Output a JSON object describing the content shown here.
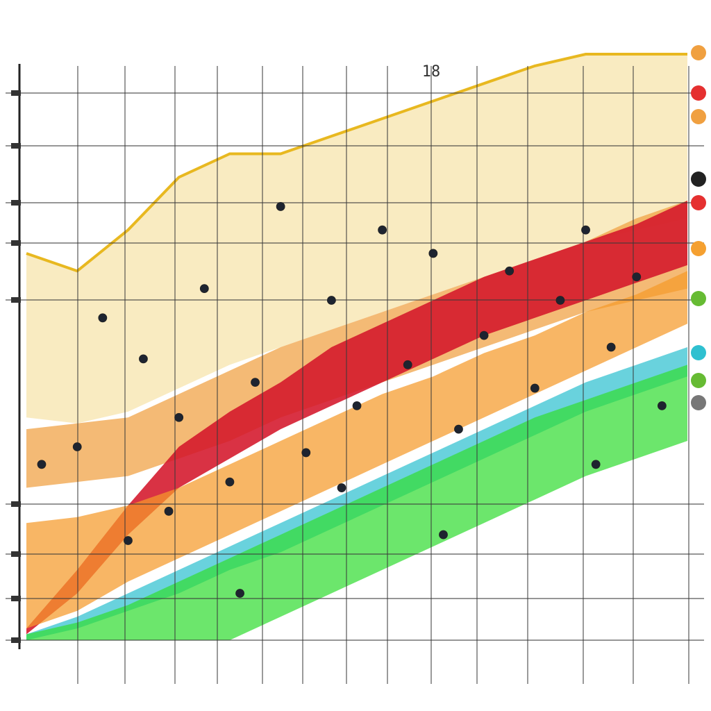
{
  "chart_data": {
    "type": "area",
    "title": "",
    "xlabel": "",
    "ylabel": "",
    "x": [
      0,
      1,
      2,
      3,
      4,
      5,
      6,
      7,
      8,
      9,
      10,
      11,
      12,
      13
    ],
    "xlim": [
      0,
      13
    ],
    "ylim": [
      0,
      100
    ],
    "grid": true,
    "legend": "right",
    "top_tick_labels": [
      "",
      "",
      "",
      "",
      "",
      "",
      "",
      "",
      "18",
      "",
      "",
      "",
      "",
      ""
    ],
    "series": [
      {
        "color": "#e8b820",
        "top": [
          66,
          63,
          70,
          79,
          83,
          83,
          86,
          89,
          92,
          95,
          98,
          100,
          100,
          100
        ],
        "bottom": [
          38,
          37,
          39,
          43,
          47,
          50,
          53,
          56,
          59,
          62,
          65,
          68,
          70,
          72
        ]
      },
      {
        "color": "#f0a040",
        "top": [
          36,
          37,
          38,
          42,
          46,
          50,
          53,
          56,
          59,
          62,
          65,
          68,
          72,
          75
        ],
        "bottom": [
          26,
          27,
          28,
          31,
          34,
          38,
          41,
          44,
          47,
          50,
          53,
          56,
          58,
          60
        ]
      },
      {
        "color": "#d4162a",
        "top": [
          2,
          12,
          23,
          33,
          39,
          44,
          50,
          54,
          58,
          62,
          65,
          68,
          71,
          75
        ],
        "bottom": [
          1,
          8,
          18,
          26,
          31,
          36,
          40,
          44,
          48,
          52,
          55,
          58,
          61,
          64
        ]
      },
      {
        "color": "#f59a2a",
        "top": [
          20,
          21,
          23,
          26,
          30,
          34,
          38,
          42,
          45,
          49,
          52,
          56,
          59,
          63
        ],
        "bottom": [
          2,
          5,
          10,
          14,
          18,
          22,
          26,
          30,
          34,
          38,
          42,
          46,
          50,
          54
        ]
      },
      {
        "color": "#2fc0d0",
        "top": [
          1,
          4,
          8,
          12,
          16,
          20,
          24,
          28,
          32,
          36,
          40,
          44,
          47,
          50
        ],
        "bottom": [
          0,
          2,
          5,
          8,
          12,
          15,
          19,
          23,
          27,
          31,
          35,
          39,
          42,
          45
        ]
      },
      {
        "color": "#33dd33",
        "top": [
          1,
          3,
          6,
          10,
          14,
          18,
          22,
          26,
          30,
          34,
          38,
          41,
          44,
          47
        ],
        "bottom": [
          0,
          0,
          0,
          0,
          0,
          4,
          8,
          12,
          16,
          20,
          24,
          28,
          31,
          34
        ]
      }
    ],
    "markers": [
      {
        "x": 0.3,
        "y": 30
      },
      {
        "x": 1,
        "y": 33
      },
      {
        "x": 1.5,
        "y": 55
      },
      {
        "x": 2,
        "y": 17
      },
      {
        "x": 2.3,
        "y": 48
      },
      {
        "x": 2.8,
        "y": 22
      },
      {
        "x": 3,
        "y": 38
      },
      {
        "x": 3.5,
        "y": 60
      },
      {
        "x": 4,
        "y": 27
      },
      {
        "x": 4.5,
        "y": 44
      },
      {
        "x": 5,
        "y": 74
      },
      {
        "x": 5.5,
        "y": 32
      },
      {
        "x": 6,
        "y": 58
      },
      {
        "x": 6.5,
        "y": 40
      },
      {
        "x": 7,
        "y": 70
      },
      {
        "x": 7.5,
        "y": 47
      },
      {
        "x": 8,
        "y": 66
      },
      {
        "x": 8.5,
        "y": 36
      },
      {
        "x": 9,
        "y": 52
      },
      {
        "x": 9.5,
        "y": 63
      },
      {
        "x": 10,
        "y": 43
      },
      {
        "x": 10.5,
        "y": 58
      },
      {
        "x": 11,
        "y": 70
      },
      {
        "x": 11.5,
        "y": 50
      },
      {
        "x": 12,
        "y": 62
      },
      {
        "x": 12.5,
        "y": 40
      },
      {
        "x": 4.2,
        "y": 8
      },
      {
        "x": 6.2,
        "y": 26
      },
      {
        "x": 8.2,
        "y": 18
      },
      {
        "x": 11.2,
        "y": 30
      }
    ],
    "legend_swatches": [
      "#f0a040",
      "#e53030",
      "#f0a040",
      "#222222",
      "#e53030",
      "#f5a030",
      "#66bb33",
      "#2fc0d0",
      "#66bb33",
      "#777777"
    ]
  }
}
